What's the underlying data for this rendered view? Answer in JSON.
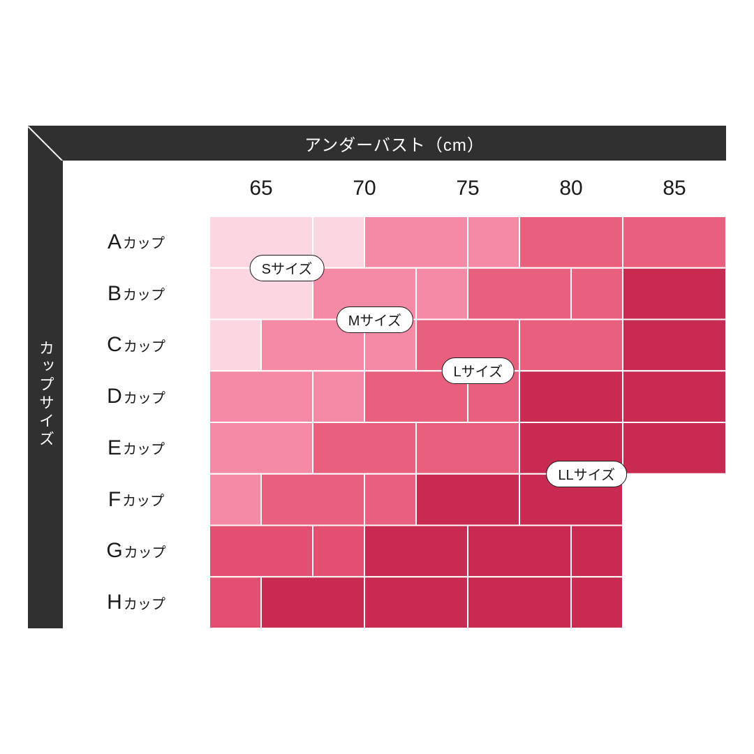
{
  "chart": {
    "type": "heatmap",
    "header_title": "アンダーバスト（cm）",
    "side_title": "カップサイズ",
    "header_bg": "#303030",
    "header_fg": "#ffffff",
    "page_bg": "#ffffff",
    "text_color": "#1a1a1a",
    "border": {
      "cell_stroke": "#ffffff",
      "cell_stroke_width": 2
    },
    "fonts": {
      "header_title_pt": 24,
      "side_title_pt": 22,
      "col_label_pt": 30,
      "row_label_big_pt": 30,
      "row_label_small_pt": 20,
      "badge_pt": 20
    },
    "grid_units": {
      "cols": 10,
      "rows": 8,
      "note": "each visible column = 2 half-units for split cells"
    },
    "columns": [
      "65",
      "70",
      "75",
      "80",
      "85"
    ],
    "rows": [
      {
        "big": "A",
        "small": "カップ"
      },
      {
        "big": "B",
        "small": "カップ"
      },
      {
        "big": "C",
        "small": "カップ"
      },
      {
        "big": "D",
        "small": "カップ"
      },
      {
        "big": "E",
        "small": "カップ"
      },
      {
        "big": "F",
        "small": "カップ"
      },
      {
        "big": "G",
        "small": "カップ"
      },
      {
        "big": "H",
        "small": "カップ"
      }
    ],
    "palette": {
      "S": "#fcd6e1",
      "M": "#f48aa5",
      "L": "#e9607f",
      "L2": "#e34f71",
      "LL": "#c92a52",
      "none": null
    },
    "cells": [
      {
        "r": 0,
        "c": 0,
        "w": 2,
        "color": "S"
      },
      {
        "r": 0,
        "c": 2,
        "w": 1,
        "color": "S"
      },
      {
        "r": 0,
        "c": 3,
        "w": 2,
        "color": "M"
      },
      {
        "r": 0,
        "c": 5,
        "w": 1,
        "color": "M"
      },
      {
        "r": 0,
        "c": 6,
        "w": 2,
        "color": "L"
      },
      {
        "r": 0,
        "c": 8,
        "w": 2,
        "color": "L"
      },
      {
        "r": 1,
        "c": 0,
        "w": 2,
        "color": "S"
      },
      {
        "r": 1,
        "c": 2,
        "w": 2,
        "color": "M"
      },
      {
        "r": 1,
        "c": 4,
        "w": 1,
        "color": "M"
      },
      {
        "r": 1,
        "c": 5,
        "w": 2,
        "color": "L"
      },
      {
        "r": 1,
        "c": 7,
        "w": 1,
        "color": "L"
      },
      {
        "r": 1,
        "c": 8,
        "w": 2,
        "color": "LL"
      },
      {
        "r": 2,
        "c": 0,
        "w": 1,
        "color": "S"
      },
      {
        "r": 2,
        "c": 1,
        "w": 2,
        "color": "M"
      },
      {
        "r": 2,
        "c": 3,
        "w": 1,
        "color": "M"
      },
      {
        "r": 2,
        "c": 4,
        "w": 2,
        "color": "L"
      },
      {
        "r": 2,
        "c": 6,
        "w": 2,
        "color": "L"
      },
      {
        "r": 2,
        "c": 8,
        "w": 2,
        "color": "LL"
      },
      {
        "r": 3,
        "c": 0,
        "w": 2,
        "color": "M"
      },
      {
        "r": 3,
        "c": 2,
        "w": 1,
        "color": "M"
      },
      {
        "r": 3,
        "c": 3,
        "w": 2,
        "color": "L"
      },
      {
        "r": 3,
        "c": 5,
        "w": 1,
        "color": "L"
      },
      {
        "r": 3,
        "c": 6,
        "w": 2,
        "color": "LL"
      },
      {
        "r": 3,
        "c": 8,
        "w": 2,
        "color": "LL"
      },
      {
        "r": 4,
        "c": 0,
        "w": 2,
        "color": "M"
      },
      {
        "r": 4,
        "c": 2,
        "w": 2,
        "color": "L"
      },
      {
        "r": 4,
        "c": 4,
        "w": 2,
        "color": "L"
      },
      {
        "r": 4,
        "c": 6,
        "w": 2,
        "color": "LL"
      },
      {
        "r": 4,
        "c": 8,
        "w": 2,
        "color": "LL"
      },
      {
        "r": 5,
        "c": 0,
        "w": 1,
        "color": "M"
      },
      {
        "r": 5,
        "c": 1,
        "w": 2,
        "color": "L"
      },
      {
        "r": 5,
        "c": 3,
        "w": 1,
        "color": "L"
      },
      {
        "r": 5,
        "c": 4,
        "w": 2,
        "color": "LL"
      },
      {
        "r": 5,
        "c": 6,
        "w": 2,
        "color": "LL"
      },
      {
        "r": 6,
        "c": 0,
        "w": 2,
        "color": "L2"
      },
      {
        "r": 6,
        "c": 2,
        "w": 1,
        "color": "L2"
      },
      {
        "r": 6,
        "c": 3,
        "w": 2,
        "color": "LL"
      },
      {
        "r": 6,
        "c": 5,
        "w": 2,
        "color": "LL"
      },
      {
        "r": 6,
        "c": 7,
        "w": 1,
        "color": "LL"
      },
      {
        "r": 7,
        "c": 0,
        "w": 1,
        "color": "L2"
      },
      {
        "r": 7,
        "c": 1,
        "w": 2,
        "color": "LL"
      },
      {
        "r": 7,
        "c": 3,
        "w": 2,
        "color": "LL"
      },
      {
        "r": 7,
        "c": 5,
        "w": 2,
        "color": "LL"
      },
      {
        "r": 7,
        "c": 7,
        "w": 1,
        "color": "LL"
      }
    ],
    "badges": [
      {
        "label": "Sサイズ",
        "cx_units": 1.5,
        "cy_units": 1.0
      },
      {
        "label": "Mサイズ",
        "cx_units": 3.2,
        "cy_units": 2.0
      },
      {
        "label": "Lサイズ",
        "cx_units": 5.2,
        "cy_units": 3.0
      },
      {
        "label": "LLサイズ",
        "cx_units": 7.3,
        "cy_units": 5.0
      }
    ]
  }
}
